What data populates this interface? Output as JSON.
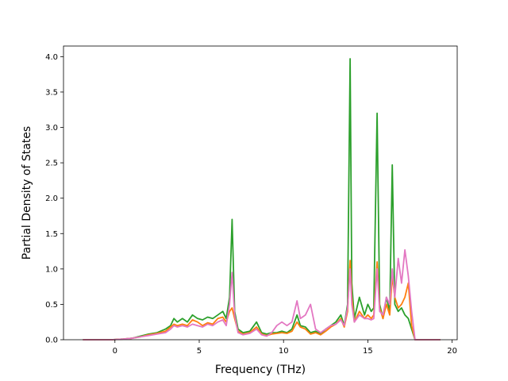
{
  "chart_data": {
    "type": "line",
    "title": "",
    "xlabel": "Frequency (THz)",
    "ylabel": "Partial Density of States",
    "xlim": [
      -3.05,
      20.3
    ],
    "ylim": [
      0,
      4.15
    ],
    "xticks": [
      0,
      5,
      10,
      15,
      20
    ],
    "yticks": [
      0.0,
      0.5,
      1.0,
      1.5,
      2.0,
      2.5,
      3.0,
      3.5,
      4.0
    ],
    "xtick_labels": [
      "0",
      "5",
      "10",
      "15",
      "20"
    ],
    "ytick_labels": [
      "0.0",
      "0.5",
      "1.0",
      "1.5",
      "2.0",
      "2.5",
      "3.0",
      "3.5",
      "4.0"
    ],
    "grid": false,
    "legend": "none",
    "series": [
      {
        "color": "#2ca02c",
        "x": [
          -1.9,
          -0.2,
          0.5,
          1.0,
          1.5,
          2.0,
          2.5,
          3.0,
          3.3,
          3.5,
          3.7,
          4.0,
          4.3,
          4.6,
          4.9,
          5.2,
          5.5,
          5.8,
          6.1,
          6.4,
          6.6,
          6.8,
          6.95,
          7.1,
          7.3,
          7.6,
          8.0,
          8.4,
          8.7,
          9.0,
          9.3,
          9.6,
          9.9,
          10.2,
          10.5,
          10.8,
          11.0,
          11.3,
          11.6,
          11.9,
          12.2,
          12.5,
          12.8,
          13.1,
          13.4,
          13.6,
          13.8,
          13.95,
          14.05,
          14.2,
          14.5,
          14.8,
          15.0,
          15.2,
          15.35,
          15.55,
          15.7,
          15.9,
          16.1,
          16.3,
          16.45,
          16.6,
          16.8,
          17.0,
          17.2,
          17.4,
          17.6,
          17.8,
          18.5,
          19.3
        ],
        "y": [
          0,
          0,
          0.01,
          0.02,
          0.05,
          0.08,
          0.1,
          0.15,
          0.2,
          0.3,
          0.25,
          0.3,
          0.25,
          0.35,
          0.3,
          0.28,
          0.32,
          0.3,
          0.35,
          0.4,
          0.3,
          0.6,
          1.7,
          0.4,
          0.15,
          0.1,
          0.12,
          0.25,
          0.1,
          0.08,
          0.1,
          0.1,
          0.12,
          0.1,
          0.15,
          0.35,
          0.2,
          0.18,
          0.1,
          0.12,
          0.08,
          0.15,
          0.2,
          0.25,
          0.35,
          0.2,
          0.5,
          3.97,
          0.8,
          0.3,
          0.6,
          0.35,
          0.5,
          0.4,
          0.45,
          3.2,
          0.5,
          0.3,
          0.6,
          0.4,
          2.47,
          0.5,
          0.4,
          0.45,
          0.35,
          0.3,
          0.15,
          0,
          0,
          0
        ]
      },
      {
        "color": "#ff7f0e",
        "x": [
          -1.9,
          -0.2,
          0.5,
          1.0,
          1.5,
          2.0,
          2.5,
          3.0,
          3.3,
          3.5,
          3.7,
          4.0,
          4.3,
          4.6,
          4.9,
          5.2,
          5.5,
          5.8,
          6.1,
          6.4,
          6.6,
          6.8,
          6.95,
          7.1,
          7.3,
          7.6,
          8.0,
          8.4,
          8.7,
          9.0,
          9.3,
          9.6,
          9.9,
          10.2,
          10.5,
          10.8,
          11.0,
          11.3,
          11.6,
          11.9,
          12.2,
          12.5,
          12.8,
          13.1,
          13.4,
          13.6,
          13.8,
          13.95,
          14.05,
          14.2,
          14.5,
          14.8,
          15.0,
          15.2,
          15.35,
          15.55,
          15.7,
          15.9,
          16.1,
          16.3,
          16.45,
          16.6,
          16.8,
          17.0,
          17.2,
          17.4,
          17.6,
          17.8,
          18.5,
          19.3
        ],
        "y": [
          0,
          0,
          0.01,
          0.02,
          0.04,
          0.07,
          0.09,
          0.12,
          0.18,
          0.22,
          0.2,
          0.22,
          0.2,
          0.28,
          0.25,
          0.2,
          0.24,
          0.22,
          0.3,
          0.32,
          0.25,
          0.4,
          0.45,
          0.3,
          0.12,
          0.08,
          0.1,
          0.18,
          0.08,
          0.06,
          0.08,
          0.09,
          0.1,
          0.09,
          0.12,
          0.25,
          0.18,
          0.15,
          0.08,
          0.1,
          0.07,
          0.12,
          0.18,
          0.22,
          0.3,
          0.18,
          0.4,
          1.12,
          0.6,
          0.25,
          0.4,
          0.3,
          0.35,
          0.3,
          0.35,
          1.1,
          0.45,
          0.3,
          0.5,
          0.35,
          0.9,
          0.6,
          0.45,
          0.5,
          0.6,
          0.8,
          0.2,
          0,
          0,
          0
        ]
      },
      {
        "color": "#e377c2",
        "x": [
          -1.9,
          -0.2,
          0.5,
          1.0,
          1.5,
          2.0,
          2.5,
          3.0,
          3.3,
          3.5,
          3.7,
          4.0,
          4.3,
          4.6,
          4.9,
          5.2,
          5.5,
          5.8,
          6.1,
          6.4,
          6.6,
          6.8,
          6.95,
          7.1,
          7.3,
          7.6,
          8.0,
          8.4,
          8.7,
          9.0,
          9.3,
          9.6,
          9.9,
          10.2,
          10.5,
          10.8,
          11.0,
          11.3,
          11.6,
          11.9,
          12.2,
          12.5,
          12.8,
          13.1,
          13.4,
          13.6,
          13.8,
          13.95,
          14.05,
          14.2,
          14.5,
          14.8,
          15.0,
          15.2,
          15.35,
          15.55,
          15.7,
          15.9,
          16.1,
          16.3,
          16.45,
          16.6,
          16.8,
          17.0,
          17.2,
          17.4,
          17.6,
          17.8,
          18.5,
          19.3
        ],
        "y": [
          0,
          0,
          0.01,
          0.02,
          0.04,
          0.06,
          0.08,
          0.1,
          0.15,
          0.2,
          0.18,
          0.2,
          0.18,
          0.22,
          0.2,
          0.18,
          0.22,
          0.2,
          0.25,
          0.28,
          0.2,
          0.5,
          0.95,
          0.35,
          0.1,
          0.07,
          0.09,
          0.15,
          0.07,
          0.05,
          0.1,
          0.2,
          0.25,
          0.2,
          0.25,
          0.55,
          0.3,
          0.35,
          0.5,
          0.15,
          0.1,
          0.15,
          0.2,
          0.22,
          0.28,
          0.2,
          0.45,
          1.0,
          0.5,
          0.25,
          0.35,
          0.3,
          0.3,
          0.28,
          0.3,
          1.0,
          0.4,
          0.35,
          0.6,
          0.5,
          1.0,
          0.6,
          1.15,
          0.8,
          1.27,
          0.9,
          0.4,
          0,
          0,
          0
        ]
      }
    ]
  }
}
